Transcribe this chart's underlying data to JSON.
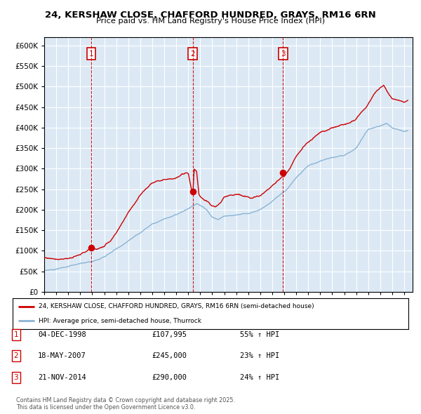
{
  "title": "24, KERSHAW CLOSE, CHAFFORD HUNDRED, GRAYS, RM16 6RN",
  "subtitle": "Price paid vs. HM Land Registry's House Price Index (HPI)",
  "legend_line1": "24, KERSHAW CLOSE, CHAFFORD HUNDRED, GRAYS, RM16 6RN (semi-detached house)",
  "legend_line2": "HPI: Average price, semi-detached house, Thurrock",
  "footer": "Contains HM Land Registry data © Crown copyright and database right 2025.\nThis data is licensed under the Open Government Licence v3.0.",
  "transactions": [
    {
      "num": 1,
      "date": "04-DEC-1998",
      "price": "£107,995",
      "pct": "55% ↑ HPI"
    },
    {
      "num": 2,
      "date": "18-MAY-2007",
      "price": "£245,000",
      "pct": "23% ↑ HPI"
    },
    {
      "num": 3,
      "date": "21-NOV-2014",
      "price": "£290,000",
      "pct": "24% ↑ HPI"
    }
  ],
  "transaction_dates_decimal": [
    1998.92,
    2007.38,
    2014.89
  ],
  "transaction_prices": [
    107995,
    245000,
    290000
  ],
  "vline_dates": [
    1998.92,
    2007.38,
    2014.89
  ],
  "red_line_color": "#cc0000",
  "blue_line_color": "#8ab4d4",
  "background_color": "#dce9f5",
  "grid_color": "#ffffff",
  "ylim": [
    0,
    620000
  ],
  "yticks": [
    0,
    50000,
    100000,
    150000,
    200000,
    250000,
    300000,
    350000,
    400000,
    450000,
    500000,
    550000,
    600000
  ],
  "xlim_start": 1995.0,
  "xlim_end": 2025.7
}
